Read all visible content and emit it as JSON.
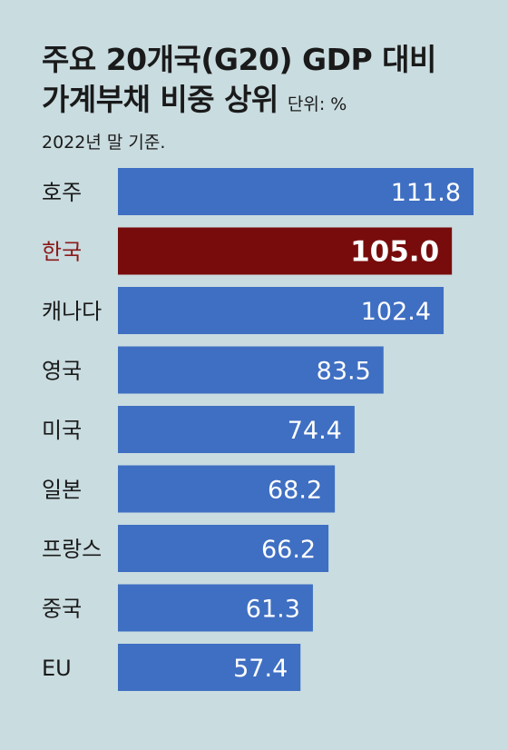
{
  "title_line1": "주요 20개국(G20) GDP 대비",
  "title_line2": "가계부채 비중 상위",
  "unit": "단위: %",
  "subtitle": "2022년 말 기준.",
  "colors": {
    "bar": "#3f6fc2",
    "highlight": "#780c0c",
    "background": "#c9dce0"
  },
  "chart_data": {
    "type": "bar",
    "orientation": "horizontal",
    "categories": [
      "호주",
      "한국",
      "캐나다",
      "영국",
      "미국",
      "일본",
      "프랑스",
      "중국",
      "EU"
    ],
    "values": [
      111.8,
      105.0,
      102.4,
      83.5,
      74.4,
      68.2,
      66.2,
      61.3,
      57.4
    ],
    "value_labels": [
      "111.8",
      "105.0",
      "102.4",
      "83.5",
      "74.4",
      "68.2",
      "66.2",
      "61.3",
      "57.4"
    ],
    "highlight": "한국",
    "xlim": [
      0,
      111.8
    ],
    "grid": false,
    "legend": "none"
  }
}
